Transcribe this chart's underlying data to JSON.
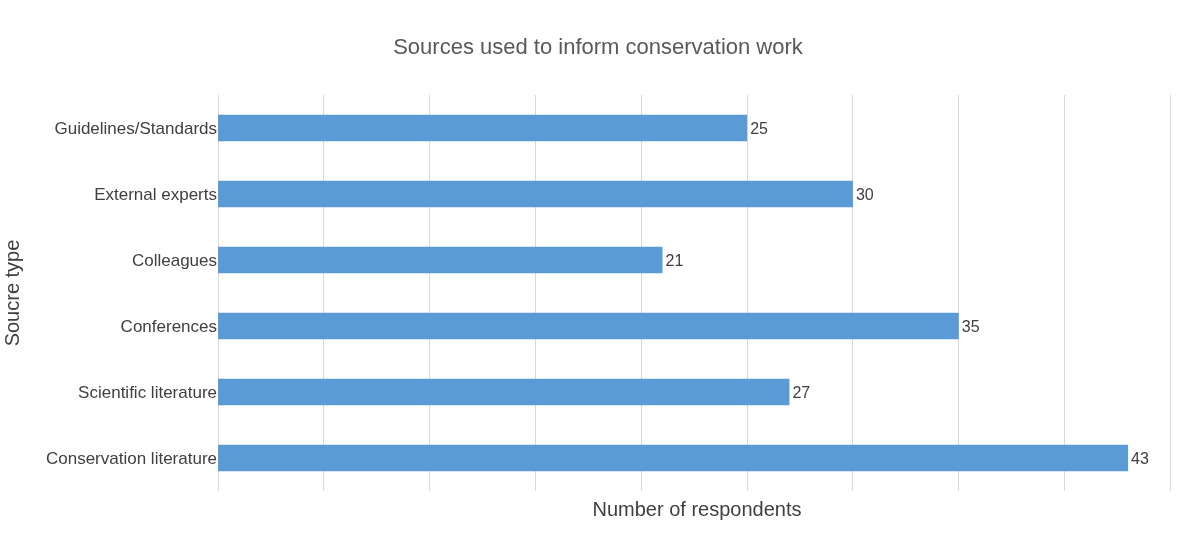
{
  "chart_data": {
    "type": "bar",
    "orientation": "horizontal",
    "title": "Sources used to inform conservation work",
    "xlabel": "Number of respondents",
    "ylabel": "Soucre type",
    "categories": [
      "Guidelines/Standards",
      "External experts",
      "Colleagues",
      "Conferences",
      "Scientific literature",
      "Conservation literature"
    ],
    "values": [
      25,
      30,
      21,
      35,
      27,
      43
    ],
    "color": "#5b9bd5",
    "data_labels": true,
    "tick_labels": "y",
    "grid": "x"
  }
}
